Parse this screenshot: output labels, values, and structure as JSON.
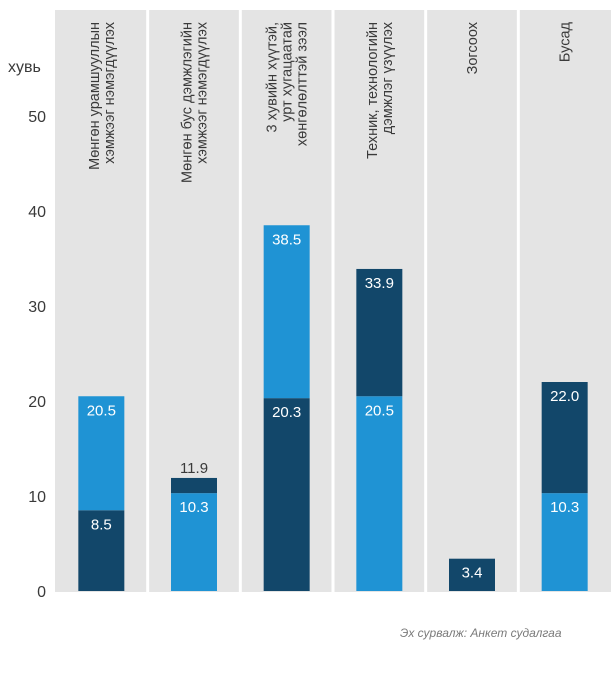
{
  "chart_data": {
    "type": "bar",
    "stacked": true,
    "ylabel": "хувь",
    "yticks": [
      0,
      10,
      20,
      30,
      40,
      50
    ],
    "ylim": [
      0,
      55
    ],
    "grid": false,
    "categories": [
      [
        "Мөнгөн урамшууллын",
        "хэмжээг нэмэгдүүлэх"
      ],
      [
        "Мөнгөн бус дэмжлэгийн",
        "хэмжээг нэмэгдүүлэх"
      ],
      [
        "3 хувийн хүүтэй,",
        "урт хугацаатай",
        "хөнгөлөлттэй зээл"
      ],
      [
        "Техник, технологийн",
        "дэмжлэг үзүүлэх"
      ],
      [
        "Зогсоох"
      ],
      [
        "Бусад"
      ]
    ],
    "bars": [
      {
        "segments": [
          {
            "value": 8.5,
            "label": "8.5",
            "color": "#12476a"
          },
          {
            "value": 20.5,
            "label": "20.5",
            "color": "#1f93d4"
          }
        ],
        "top_label_outside": false
      },
      {
        "segments": [
          {
            "value": 10.3,
            "label": "10.3",
            "color": "#1f93d4"
          },
          {
            "value": 11.9,
            "label": "11.9",
            "color": "#12476a"
          }
        ],
        "top_label_outside": true
      },
      {
        "segments": [
          {
            "value": 20.3,
            "label": "20.3",
            "color": "#12476a"
          },
          {
            "value": 38.5,
            "label": "38.5",
            "color": "#1f93d4"
          }
        ],
        "top_label_outside": false
      },
      {
        "segments": [
          {
            "value": 20.5,
            "label": "20.5",
            "color": "#1f93d4"
          },
          {
            "value": 33.9,
            "label": "33.9",
            "color": "#12476a"
          }
        ],
        "top_label_outside": false
      },
      {
        "segments": [
          {
            "value": 3.4,
            "label": "3.4",
            "color": "#12476a"
          }
        ],
        "top_label_outside": false
      },
      {
        "segments": [
          {
            "value": 10.3,
            "label": "10.3",
            "color": "#1f93d4"
          },
          {
            "value": 22.0,
            "label": "22.0",
            "color": "#12476a"
          }
        ],
        "top_label_outside": false
      }
    ],
    "note": "Segment values are cumulative heights as labeled on the chart."
  },
  "source": "Эх сурвалж: Анкет судалгаа",
  "colors": {
    "panel": "#e4e4e4",
    "divider": "#ffffff",
    "dark_blue": "#12476a",
    "light_blue": "#1f93d4",
    "text": "#3a3a3a"
  }
}
